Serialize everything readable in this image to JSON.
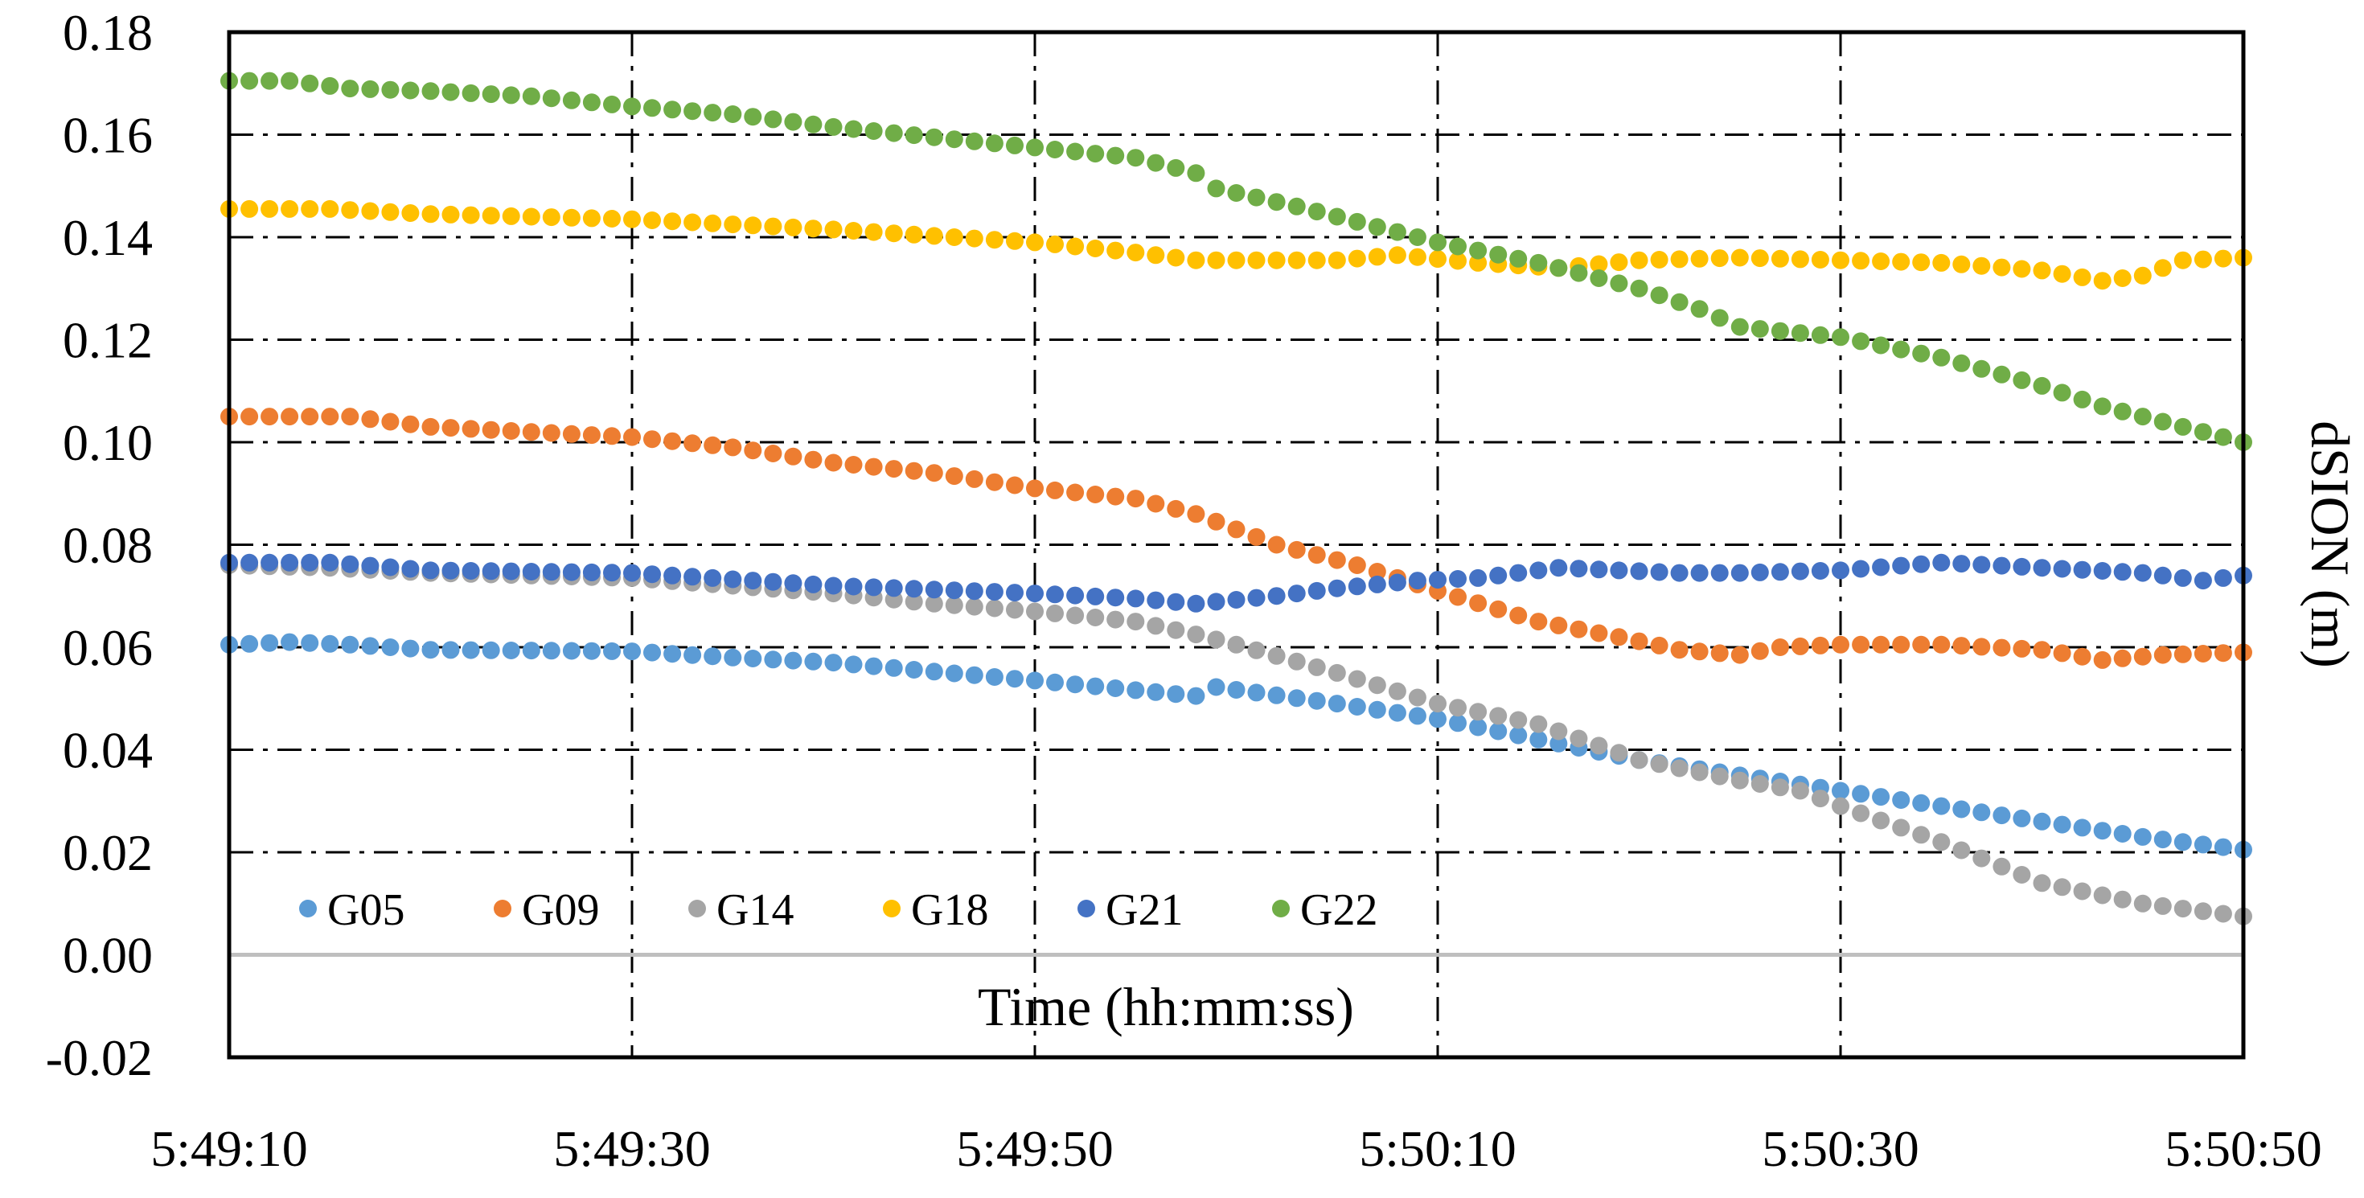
{
  "chart_data": {
    "type": "scatter",
    "title": "",
    "xlabel": "Time (hh:mm:ss)",
    "ylabel": "dSION (m)",
    "x_start_seconds": 0,
    "x_end_seconds": 100,
    "x_tick_labels": [
      "5:49:10",
      "5:49:30",
      "5:49:50",
      "5:50:10",
      "5:50:30",
      "5:50:50"
    ],
    "x_tick_seconds": [
      0,
      20,
      40,
      60,
      80,
      100
    ],
    "xlim": [
      0,
      100
    ],
    "ylim": [
      -0.02,
      0.18
    ],
    "y_tick_values": [
      -0.02,
      0.0,
      0.02,
      0.04,
      0.06,
      0.08,
      0.1,
      0.12,
      0.14,
      0.16,
      0.18
    ],
    "y_tick_labels": [
      "-0.02",
      "0.00",
      "0.02",
      "0.04",
      "0.06",
      "0.08",
      "0.10",
      "0.12",
      "0.14",
      "0.16",
      "0.18"
    ],
    "grid": "dash-dot",
    "legend_position": "bottom-left",
    "points_per_second": 1,
    "series": [
      {
        "name": "G05",
        "color": "#5B9BD5",
        "keyframes": [
          [
            0,
            0.0605
          ],
          [
            3,
            0.061
          ],
          [
            6,
            0.0605
          ],
          [
            10,
            0.0595
          ],
          [
            20,
            0.0592
          ],
          [
            25,
            0.058
          ],
          [
            30,
            0.057
          ],
          [
            40,
            0.0535
          ],
          [
            48,
            0.0505
          ],
          [
            48.5,
            0.0525
          ],
          [
            55,
            0.049
          ],
          [
            60,
            0.046
          ],
          [
            65,
            0.042
          ],
          [
            70,
            0.038
          ],
          [
            75,
            0.035
          ],
          [
            80,
            0.032
          ],
          [
            85,
            0.029
          ],
          [
            90,
            0.026
          ],
          [
            95,
            0.023
          ],
          [
            100,
            0.0205
          ]
        ]
      },
      {
        "name": "G09",
        "color": "#ED7D31",
        "keyframes": [
          [
            0,
            0.105
          ],
          [
            6,
            0.105
          ],
          [
            10,
            0.103
          ],
          [
            15,
            0.102
          ],
          [
            20,
            0.101
          ],
          [
            25,
            0.099
          ],
          [
            30,
            0.096
          ],
          [
            35,
            0.094
          ],
          [
            40,
            0.091
          ],
          [
            45,
            0.089
          ],
          [
            48,
            0.086
          ],
          [
            52,
            0.08
          ],
          [
            56,
            0.076
          ],
          [
            60,
            0.071
          ],
          [
            65,
            0.065
          ],
          [
            69,
            0.062
          ],
          [
            72,
            0.0595
          ],
          [
            75,
            0.0585
          ],
          [
            77,
            0.06
          ],
          [
            80,
            0.0605
          ],
          [
            85,
            0.0605
          ],
          [
            90,
            0.0595
          ],
          [
            93,
            0.0575
          ],
          [
            96,
            0.0585
          ],
          [
            100,
            0.059
          ]
        ]
      },
      {
        "name": "G14",
        "color": "#A5A5A5",
        "keyframes": [
          [
            0,
            0.076
          ],
          [
            5,
            0.0755
          ],
          [
            10,
            0.0745
          ],
          [
            20,
            0.0735
          ],
          [
            30,
            0.0705
          ],
          [
            35,
            0.0685
          ],
          [
            40,
            0.067
          ],
          [
            45,
            0.065
          ],
          [
            48,
            0.0625
          ],
          [
            50,
            0.0605
          ],
          [
            55,
            0.055
          ],
          [
            60,
            0.049
          ],
          [
            65,
            0.045
          ],
          [
            70,
            0.038
          ],
          [
            75,
            0.034
          ],
          [
            78,
            0.032
          ],
          [
            80,
            0.029
          ],
          [
            85,
            0.022
          ],
          [
            90,
            0.014
          ],
          [
            95,
            0.01
          ],
          [
            100,
            0.0075
          ]
        ]
      },
      {
        "name": "G18",
        "color": "#FFC000",
        "keyframes": [
          [
            0,
            0.1455
          ],
          [
            5,
            0.1455
          ],
          [
            10,
            0.1445
          ],
          [
            20,
            0.1435
          ],
          [
            25,
            0.1425
          ],
          [
            30,
            0.1415
          ],
          [
            40,
            0.139
          ],
          [
            45,
            0.137
          ],
          [
            48,
            0.1355
          ],
          [
            52,
            0.1355
          ],
          [
            55,
            0.1355
          ],
          [
            58,
            0.1365
          ],
          [
            62,
            0.135
          ],
          [
            66,
            0.134
          ],
          [
            70,
            0.1355
          ],
          [
            75,
            0.136
          ],
          [
            80,
            0.1355
          ],
          [
            85,
            0.135
          ],
          [
            90,
            0.1335
          ],
          [
            93,
            0.1315
          ],
          [
            95,
            0.1325
          ],
          [
            97,
            0.1355
          ],
          [
            100,
            0.136
          ]
        ]
      },
      {
        "name": "G21",
        "color": "#4472C4",
        "keyframes": [
          [
            0,
            0.0765
          ],
          [
            5,
            0.0765
          ],
          [
            10,
            0.075
          ],
          [
            20,
            0.0745
          ],
          [
            30,
            0.072
          ],
          [
            40,
            0.0705
          ],
          [
            45,
            0.0695
          ],
          [
            48,
            0.0685
          ],
          [
            52,
            0.07
          ],
          [
            55,
            0.0715
          ],
          [
            59,
            0.073
          ],
          [
            62,
            0.0735
          ],
          [
            66,
            0.0755
          ],
          [
            72,
            0.0745
          ],
          [
            75,
            0.0745
          ],
          [
            80,
            0.075
          ],
          [
            85,
            0.0765
          ],
          [
            90,
            0.0755
          ],
          [
            95,
            0.0745
          ],
          [
            98,
            0.073
          ],
          [
            100,
            0.074
          ]
        ]
      },
      {
        "name": "G22",
        "color": "#70AD47",
        "keyframes": [
          [
            0,
            0.1705
          ],
          [
            3,
            0.1705
          ],
          [
            6,
            0.169
          ],
          [
            10,
            0.1685
          ],
          [
            15,
            0.1675
          ],
          [
            20,
            0.1655
          ],
          [
            25,
            0.164
          ],
          [
            30,
            0.1615
          ],
          [
            35,
            0.1595
          ],
          [
            40,
            0.1575
          ],
          [
            45,
            0.1555
          ],
          [
            48,
            0.1525
          ],
          [
            49,
            0.1495
          ],
          [
            53,
            0.146
          ],
          [
            57,
            0.142
          ],
          [
            60,
            0.139
          ],
          [
            65,
            0.135
          ],
          [
            70,
            0.13
          ],
          [
            73,
            0.126
          ],
          [
            75,
            0.1225
          ],
          [
            80,
            0.1205
          ],
          [
            85,
            0.1165
          ],
          [
            90,
            0.111
          ],
          [
            93,
            0.107
          ],
          [
            96,
            0.104
          ],
          [
            100,
            0.1
          ]
        ]
      }
    ]
  }
}
